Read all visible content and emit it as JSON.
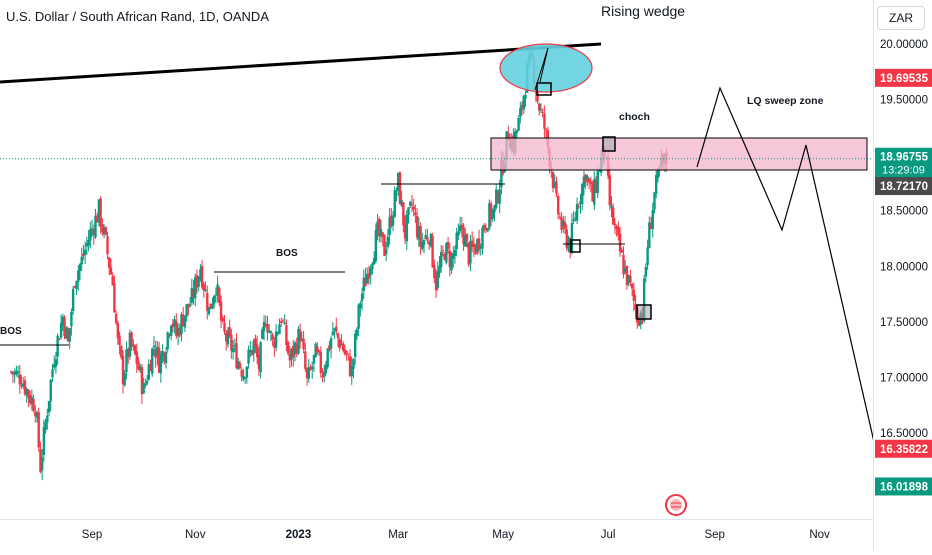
{
  "header": {
    "symbol_title": "U.S. Dollar / South African Rand, 1D, OANDA",
    "currency_button": "ZAR"
  },
  "chart_data": {
    "type": "candlestick",
    "title": "U.S. Dollar / South African Rand, 1D, OANDA",
    "ylim": [
      15.8,
      20.45
    ],
    "y_ticks": [
      {
        "value": 20.0,
        "label": "20.00000"
      },
      {
        "value": 19.5,
        "label": "19.50000"
      },
      {
        "value": 18.5,
        "label": "18.50000"
      },
      {
        "value": 18.0,
        "label": "18.00000"
      },
      {
        "value": 17.5,
        "label": "17.50000"
      },
      {
        "value": 17.0,
        "label": "17.00000"
      },
      {
        "value": 16.5,
        "label": "16.50000"
      }
    ],
    "x_labels": [
      {
        "label": "Sep",
        "day": 7,
        "bold": false
      },
      {
        "label": "Nov",
        "day": 67,
        "bold": false
      },
      {
        "label": "2023",
        "day": 127,
        "bold": true
      },
      {
        "label": "Mar",
        "day": 185,
        "bold": false
      },
      {
        "label": "May",
        "day": 246,
        "bold": false
      },
      {
        "label": "Jul",
        "day": 307,
        "bold": false
      },
      {
        "label": "Sep",
        "day": 369,
        "bold": false
      },
      {
        "label": "Nov",
        "day": 430,
        "bold": false
      }
    ],
    "price_labels": [
      {
        "value": 19.69535,
        "text": "19.69535",
        "color": "#f23645"
      },
      {
        "value": 18.96755,
        "text": "18.96755",
        "sub": "13:29:09",
        "color": "#089981"
      },
      {
        "value": 18.7217,
        "text": "18.72170",
        "color": "#4a4a4a"
      },
      {
        "value": 16.35822,
        "text": "16.35822",
        "color": "#f23645"
      },
      {
        "value": 16.01898,
        "text": "16.01898",
        "color": "#089981"
      }
    ],
    "current_price": 18.96755,
    "anchors": [
      {
        "day": -40,
        "price": 17.05
      },
      {
        "day": -34,
        "price": 17.0
      },
      {
        "day": -30,
        "price": 16.85
      },
      {
        "day": -26,
        "price": 16.75
      },
      {
        "day": -23,
        "price": 16.2
      },
      {
        "day": -19,
        "price": 16.72
      },
      {
        "day": -15,
        "price": 17.2
      },
      {
        "day": -10,
        "price": 17.55
      },
      {
        "day": -7,
        "price": 17.3
      },
      {
        "day": -3,
        "price": 17.9
      },
      {
        "day": 1,
        "price": 18.05
      },
      {
        "day": 6,
        "price": 18.3
      },
      {
        "day": 11,
        "price": 18.5
      },
      {
        "day": 15,
        "price": 18.2
      },
      {
        "day": 19,
        "price": 17.85
      },
      {
        "day": 22,
        "price": 17.3
      },
      {
        "day": 25,
        "price": 17.02
      },
      {
        "day": 29,
        "price": 17.3
      },
      {
        "day": 33,
        "price": 17.15
      },
      {
        "day": 37,
        "price": 16.88
      },
      {
        "day": 40,
        "price": 17.1
      },
      {
        "day": 43,
        "price": 17.3
      },
      {
        "day": 46,
        "price": 17.15
      },
      {
        "day": 49,
        "price": 17.25
      },
      {
        "day": 53,
        "price": 17.55
      },
      {
        "day": 56,
        "price": 17.38
      },
      {
        "day": 60,
        "price": 17.55
      },
      {
        "day": 65,
        "price": 17.7
      },
      {
        "day": 70,
        "price": 18.0
      },
      {
        "day": 75,
        "price": 17.6
      },
      {
        "day": 79,
        "price": 17.85
      },
      {
        "day": 83,
        "price": 17.4
      },
      {
        "day": 89,
        "price": 17.25
      },
      {
        "day": 95,
        "price": 17.05
      },
      {
        "day": 101,
        "price": 17.3
      },
      {
        "day": 104,
        "price": 17.1
      },
      {
        "day": 108,
        "price": 17.55
      },
      {
        "day": 112,
        "price": 17.3
      },
      {
        "day": 117,
        "price": 17.55
      },
      {
        "day": 122,
        "price": 17.15
      },
      {
        "day": 128,
        "price": 17.4
      },
      {
        "day": 132,
        "price": 16.95
      },
      {
        "day": 137,
        "price": 17.2
      },
      {
        "day": 141,
        "price": 17.05
      },
      {
        "day": 147,
        "price": 17.42
      },
      {
        "day": 152,
        "price": 17.3
      },
      {
        "day": 158,
        "price": 17.05
      },
      {
        "day": 163,
        "price": 17.7
      },
      {
        "day": 168,
        "price": 18.0
      },
      {
        "day": 173,
        "price": 18.3
      },
      {
        "day": 177,
        "price": 18.15
      },
      {
        "day": 181,
        "price": 18.45
      },
      {
        "day": 185,
        "price": 18.75
      },
      {
        "day": 189,
        "price": 18.3
      },
      {
        "day": 193,
        "price": 18.55
      },
      {
        "day": 198,
        "price": 18.2
      },
      {
        "day": 203,
        "price": 18.3
      },
      {
        "day": 207,
        "price": 17.85
      },
      {
        "day": 212,
        "price": 18.15
      },
      {
        "day": 216,
        "price": 18.05
      },
      {
        "day": 222,
        "price": 18.35
      },
      {
        "day": 226,
        "price": 18.1
      },
      {
        "day": 231,
        "price": 18.2
      },
      {
        "day": 237,
        "price": 18.45
      },
      {
        "day": 241,
        "price": 18.5
      },
      {
        "day": 245,
        "price": 18.85
      },
      {
        "day": 249,
        "price": 19.2
      },
      {
        "day": 252,
        "price": 19.1
      },
      {
        "day": 256,
        "price": 19.35
      },
      {
        "day": 260,
        "price": 19.75
      },
      {
        "day": 263,
        "price": 19.85
      },
      {
        "day": 266,
        "price": 19.5
      },
      {
        "day": 270,
        "price": 19.25
      },
      {
        "day": 274,
        "price": 18.9
      },
      {
        "day": 277,
        "price": 18.55
      },
      {
        "day": 281,
        "price": 18.3
      },
      {
        "day": 285,
        "price": 18.2
      },
      {
        "day": 289,
        "price": 18.55
      },
      {
        "day": 294,
        "price": 18.85
      },
      {
        "day": 298,
        "price": 18.6
      },
      {
        "day": 302,
        "price": 18.9
      },
      {
        "day": 305,
        "price": 19.05
      },
      {
        "day": 308,
        "price": 18.55
      },
      {
        "day": 312,
        "price": 18.25
      },
      {
        "day": 316,
        "price": 18.0
      },
      {
        "day": 320,
        "price": 17.8
      },
      {
        "day": 324,
        "price": 17.55
      },
      {
        "day": 327,
        "price": 17.6
      },
      {
        "day": 330,
        "price": 18.2
      },
      {
        "day": 334,
        "price": 18.65
      },
      {
        "day": 338,
        "price": 18.9
      },
      {
        "day": 341,
        "price": 18.95
      }
    ],
    "pixel_map": {
      "day0_x": 80,
      "px_per_day": 1.72,
      "candle_px": 2.4
    }
  },
  "annotations": {
    "rising_wedge": "Rising wedge",
    "lq_sweep_zone": "LQ sweep zone",
    "choch": "choch",
    "bos_left": "BOS",
    "bos_mid": "BOS"
  }
}
